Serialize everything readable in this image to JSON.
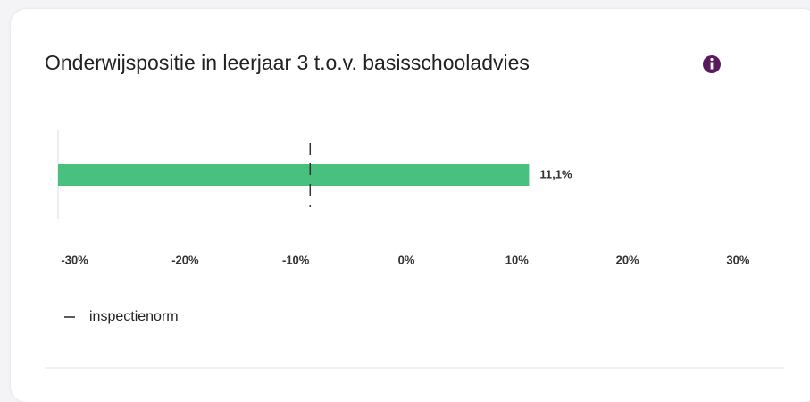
{
  "chart_data": {
    "type": "hbar",
    "title": "Onderwijspositie in leerjaar 3 t.o.v. basisschooladvies",
    "categories": [
      null
    ],
    "values": [
      11.1
    ],
    "value_labels": [
      "11,1%"
    ],
    "color": "#48c07e",
    "xlim": [
      -31.5,
      31.5
    ],
    "xticks": [
      {
        "value": -30,
        "label": "-30%"
      },
      {
        "value": -20,
        "label": "-20%"
      },
      {
        "value": -10,
        "label": "-10%"
      },
      {
        "value": 0,
        "label": "0%"
      },
      {
        "value": 10,
        "label": "10%"
      },
      {
        "value": 20,
        "label": "20%"
      },
      {
        "value": 30,
        "label": "30%"
      }
    ],
    "norm": {
      "name": "inspectienorm",
      "value": -8.7
    }
  }
}
